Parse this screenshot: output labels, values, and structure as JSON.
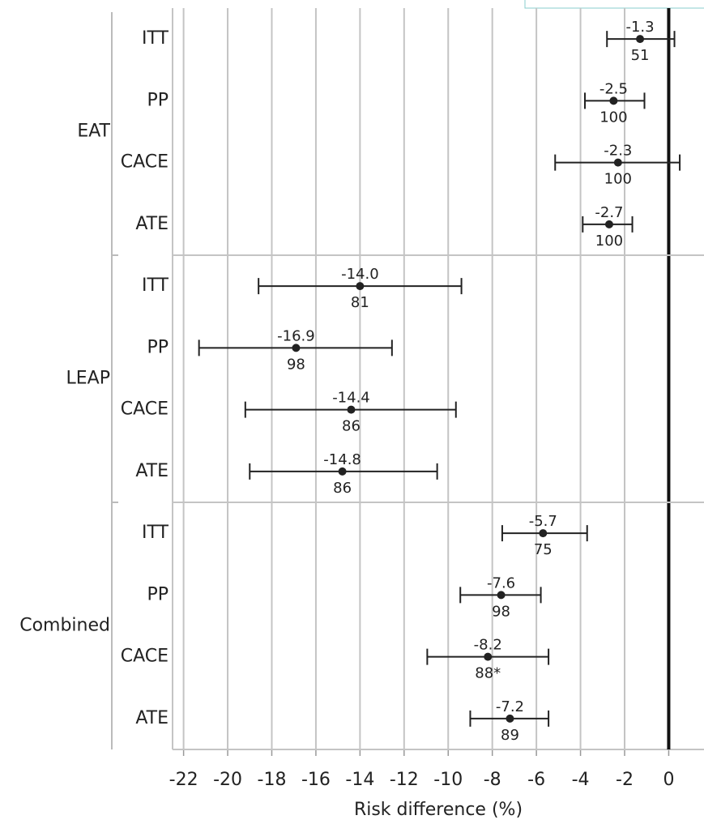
{
  "chart_data": {
    "type": "forest",
    "xlabel": "Risk difference (%)",
    "xlim": [
      -22.5,
      1.6
    ],
    "xticks": [
      -22,
      -20,
      -18,
      -16,
      -14,
      -12,
      -10,
      -8,
      -6,
      -4,
      -2,
      0
    ],
    "grid": true,
    "color": "#222222",
    "groups": [
      {
        "name": "EAT",
        "rows": [
          {
            "label": "ITT",
            "estimate": -1.3,
            "estimate_label": "-1.3",
            "lower": -2.8,
            "upper": 0.26,
            "note": "51"
          },
          {
            "label": "PP",
            "estimate": -2.5,
            "estimate_label": "-2.5",
            "lower": -3.8,
            "upper": -1.1,
            "note": "100"
          },
          {
            "label": "CACE",
            "estimate": -2.3,
            "estimate_label": "-2.3",
            "lower": -5.15,
            "upper": 0.5,
            "note": "100"
          },
          {
            "label": "ATE",
            "estimate": -2.7,
            "estimate_label": "-2.7",
            "lower": -3.9,
            "upper": -1.65,
            "note": "100"
          }
        ]
      },
      {
        "name": "LEAP",
        "rows": [
          {
            "label": "ITT",
            "estimate": -14.0,
            "estimate_label": "-14.0",
            "lower": -18.6,
            "upper": -9.4,
            "note": "81"
          },
          {
            "label": "PP",
            "estimate": -16.9,
            "estimate_label": "-16.9",
            "lower": -21.3,
            "upper": -12.55,
            "note": "98"
          },
          {
            "label": "CACE",
            "estimate": -14.4,
            "estimate_label": "-14.4",
            "lower": -19.2,
            "upper": -9.65,
            "note": "86"
          },
          {
            "label": "ATE",
            "estimate": -14.8,
            "estimate_label": "-14.8",
            "lower": -19.0,
            "upper": -10.5,
            "note": "86"
          }
        ]
      },
      {
        "name": "Combined",
        "rows": [
          {
            "label": "ITT",
            "estimate": -5.7,
            "estimate_label": "-5.7",
            "lower": -7.55,
            "upper": -3.7,
            "note": "75"
          },
          {
            "label": "PP",
            "estimate": -7.6,
            "estimate_label": "-7.6",
            "lower": -9.45,
            "upper": -5.8,
            "note": "98"
          },
          {
            "label": "CACE",
            "estimate": -8.2,
            "estimate_label": "-8.2",
            "lower": -10.95,
            "upper": -5.45,
            "note": "88*"
          },
          {
            "label": "ATE",
            "estimate": -7.2,
            "estimate_label": "-7.2",
            "lower": -9.0,
            "upper": -5.45,
            "note": "89"
          }
        ]
      }
    ]
  }
}
